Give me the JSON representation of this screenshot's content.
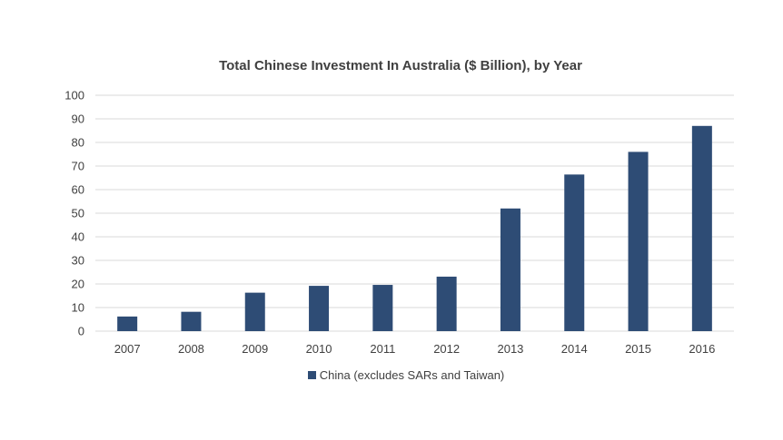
{
  "chart_data": {
    "type": "bar",
    "title": "Total Chinese Investment In Australia ($ Billion), by Year",
    "xlabel": "",
    "ylabel": "",
    "categories": [
      "2007",
      "2008",
      "2009",
      "2010",
      "2011",
      "2012",
      "2013",
      "2014",
      "2015",
      "2016"
    ],
    "series": [
      {
        "name": "China (excludes SARs and Taiwan)",
        "color": "#2e4c75",
        "values": [
          6.2,
          8.2,
          16.3,
          19.2,
          19.6,
          23.1,
          52,
          66.4,
          76,
          87
        ]
      }
    ],
    "ylim": [
      0,
      100
    ],
    "yticks": [
      0,
      10,
      20,
      30,
      40,
      50,
      60,
      70,
      80,
      90,
      100
    ],
    "grid": true,
    "legend_position": "bottom"
  }
}
